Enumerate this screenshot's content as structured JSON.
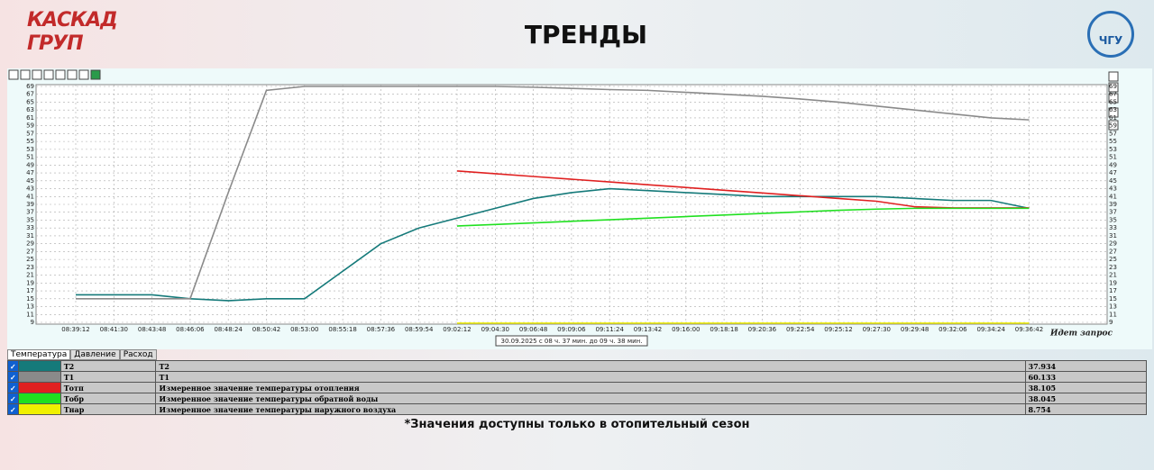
{
  "header": {
    "logo": "КАСКАД ГРУП",
    "title": "ТРЕНДЫ",
    "logo_right": "ЧГУ"
  },
  "chart_data": {
    "type": "line",
    "categories": [
      "08:39:12",
      "08:41:30",
      "08:43:48",
      "08:46:06",
      "08:48:24",
      "08:50:42",
      "08:53:00",
      "08:55:18",
      "08:57:36",
      "08:59:54",
      "09:02:12",
      "09:04:30",
      "09:06:48",
      "09:09:06",
      "09:11:24",
      "09:13:42",
      "09:16:00",
      "09:18:18",
      "09:20:36",
      "09:22:54",
      "09:25:12",
      "09:27:30",
      "09:29:48",
      "09:32:06",
      "09:34:24",
      "09:36:42"
    ],
    "ylim": [
      9,
      69
    ],
    "yticks": [
      9,
      11,
      13,
      15,
      17,
      19,
      21,
      23,
      25,
      27,
      29,
      31,
      33,
      35,
      37,
      39,
      41,
      43,
      45,
      47,
      49,
      51,
      53,
      55,
      57,
      59,
      61,
      63,
      65,
      67,
      69
    ],
    "grid": true,
    "range_label": "30.09.2025 с 08 ч. 37 мин. до 09 ч. 38 мин.",
    "status": "Идет запрос",
    "series": [
      {
        "name": "T2",
        "color": "#157a7a",
        "values": [
          16,
          16,
          16,
          15,
          14.5,
          15,
          15,
          22,
          29,
          33,
          35.5,
          38,
          40.5,
          42,
          43,
          42.5,
          42,
          41.5,
          41,
          41,
          41,
          41,
          40.5,
          40,
          40,
          38
        ]
      },
      {
        "name": "T1",
        "color": "#8a8a8a",
        "values": [
          15,
          15,
          15,
          15,
          42,
          68,
          69,
          69,
          69,
          69,
          69,
          69,
          68.8,
          68.5,
          68.2,
          68,
          67.5,
          67,
          66.5,
          65.8,
          65,
          64,
          63,
          62,
          61,
          60.5
        ]
      },
      {
        "name": "Тотп",
        "color": "#e02020",
        "values": [
          null,
          null,
          null,
          null,
          null,
          null,
          null,
          null,
          null,
          null,
          47.5,
          46.8,
          46.1,
          45.4,
          44.7,
          44,
          43.3,
          42.6,
          41.9,
          41.2,
          40.5,
          39.8,
          38.4,
          38.1,
          38.1,
          38.1
        ]
      },
      {
        "name": "Тобр",
        "color": "#20e020",
        "values": [
          null,
          null,
          null,
          null,
          null,
          null,
          null,
          null,
          null,
          null,
          33.5,
          33.9,
          34.3,
          34.7,
          35.1,
          35.5,
          35.9,
          36.3,
          36.7,
          37.1,
          37.5,
          37.8,
          38,
          38,
          38,
          38
        ]
      },
      {
        "name": "Тнар",
        "color": "#f0f000",
        "values": [
          null,
          null,
          null,
          null,
          null,
          null,
          null,
          null,
          null,
          null,
          8.8,
          8.8,
          8.8,
          8.8,
          8.8,
          8.8,
          8.8,
          8.8,
          8.8,
          8.8,
          8.8,
          8.8,
          8.8,
          8.8,
          8.8,
          8.8
        ]
      }
    ]
  },
  "tabs": [
    "Температура",
    "Давление",
    "Расход"
  ],
  "table": {
    "rows": [
      {
        "description": "T2",
        "value": "37.934"
      },
      {
        "description": "T1",
        "value": "60.133"
      },
      {
        "description": "Измеренное значение температуры отопления",
        "value": "38.105"
      },
      {
        "description": "Измеренное значение температуры обратной воды",
        "value": "38.045"
      },
      {
        "description": "Измеренное значение температуры наружного воздуха",
        "value": "8.754"
      }
    ]
  },
  "footnote": "*Значения доступны только в отопительный сезон"
}
